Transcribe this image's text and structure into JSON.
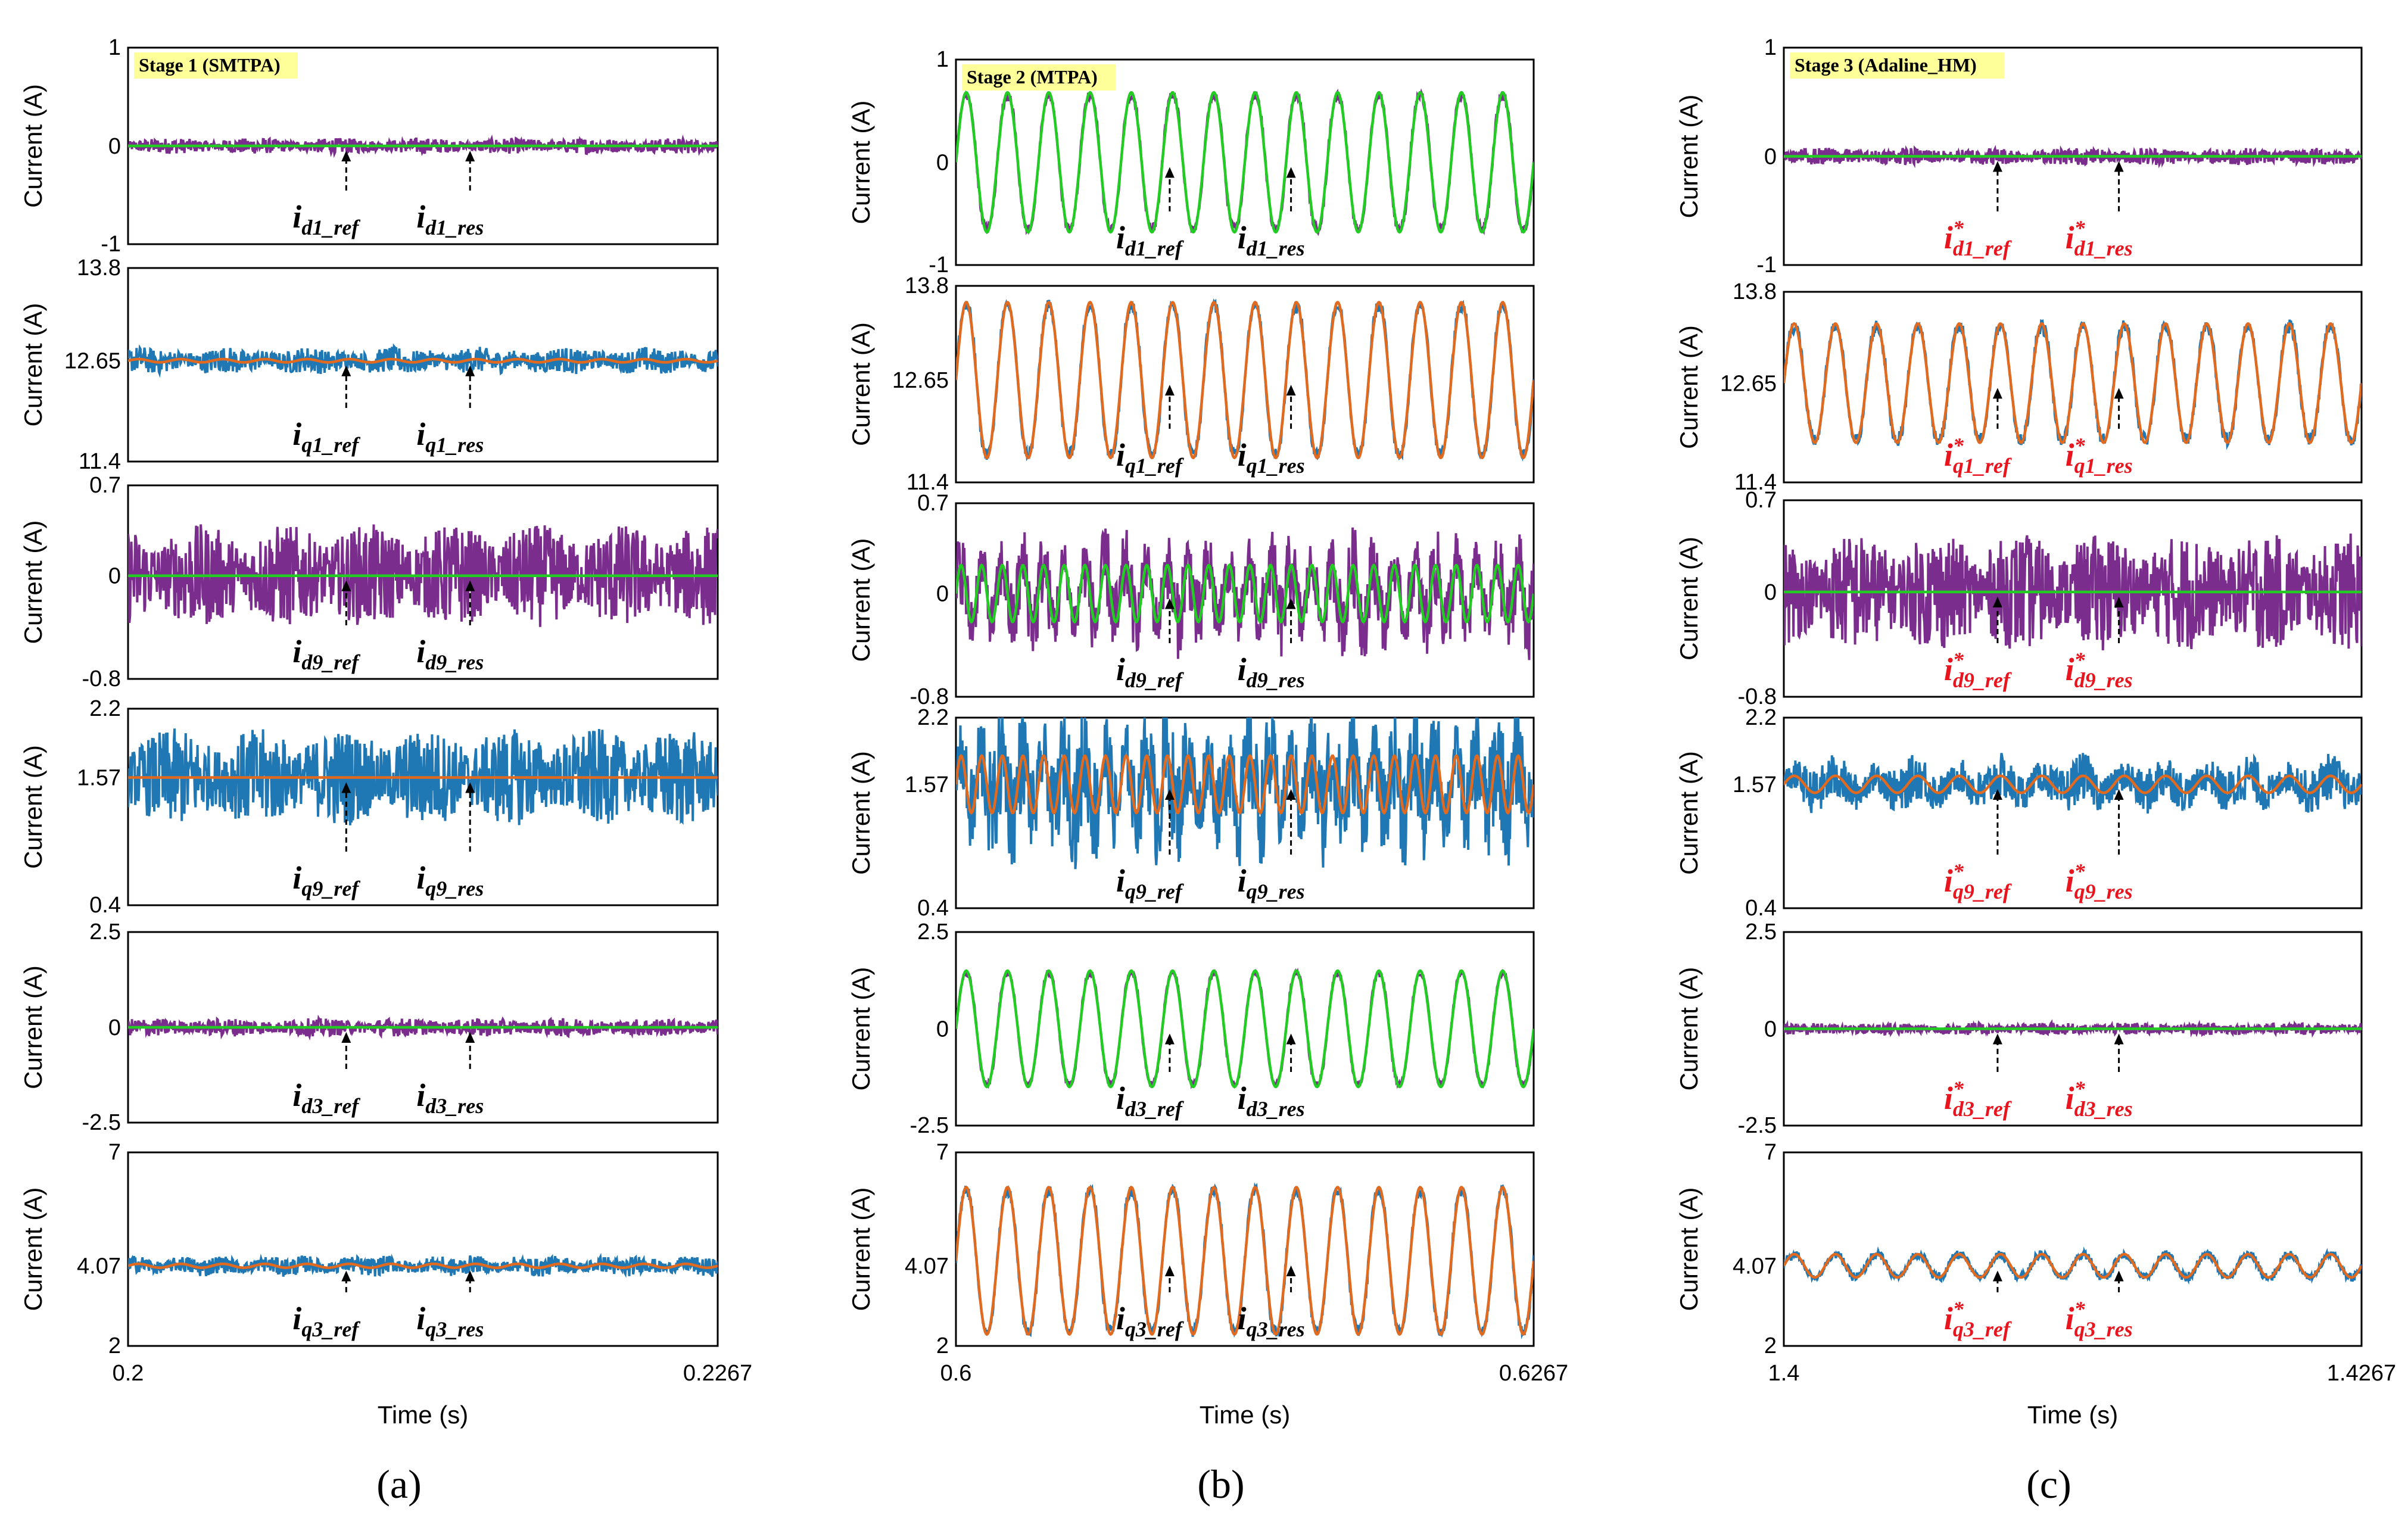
{
  "figure": {
    "ylabel": "Current (A)",
    "xlabel": "Time (s)",
    "colors": {
      "d_res": "#7B2D8E",
      "d_ref": "#22CC22",
      "q_res": "#1F77B4",
      "q_ref": "#E06A1F",
      "stage_box": "#FFFF99",
      "red_label": "#E8141E"
    }
  },
  "chart_data": [
    {
      "column": "a",
      "caption": "(a)",
      "stage_label": "Stage 1 (SMTPA)",
      "type": "line",
      "x_ticks": [
        "0.2",
        "0.2267"
      ],
      "xlim": [
        0.2,
        0.2267
      ],
      "xlabel": "Time (s)",
      "label_style": "plain",
      "subplots": [
        {
          "id": "d1",
          "kind": "d",
          "ylim": [
            -1,
            1
          ],
          "y_ticks": [
            "1",
            "0",
            "-1"
          ],
          "ref_level": 0,
          "ref_amp": 0,
          "res_noise": 0.05,
          "cycles": 14,
          "labels": [
            {
              "base": "i",
              "sub": "d1_ref"
            },
            {
              "base": "i",
              "sub": "d1_res"
            }
          ]
        },
        {
          "id": "q1",
          "kind": "q",
          "ylim": [
            11.4,
            13.8
          ],
          "y_ticks": [
            "13.8",
            "12.65",
            "11.4"
          ],
          "ref_level": 12.65,
          "ref_amp": 0.02,
          "res_noise": 0.1,
          "cycles": 14,
          "labels": [
            {
              "base": "i",
              "sub": "q1_ref"
            },
            {
              "base": "i",
              "sub": "q1_res"
            }
          ]
        },
        {
          "id": "d9",
          "kind": "d",
          "ylim": [
            -0.8,
            0.7
          ],
          "y_ticks": [
            "0.7",
            "0",
            "-0.8"
          ],
          "ref_level": 0,
          "ref_amp": 0,
          "res_noise": 0.25,
          "cycles": 14,
          "labels": [
            {
              "base": "i",
              "sub": "d9_ref"
            },
            {
              "base": "i",
              "sub": "d9_res"
            }
          ]
        },
        {
          "id": "q9",
          "kind": "q",
          "ylim": [
            0.4,
            2.2
          ],
          "y_ticks": [
            "2.2",
            "1.57",
            "0.4"
          ],
          "ref_level": 1.57,
          "ref_amp": 0,
          "res_noise": 0.28,
          "cycles": 14,
          "labels": [
            {
              "base": "i",
              "sub": "q9_ref"
            },
            {
              "base": "i",
              "sub": "q9_res"
            }
          ]
        },
        {
          "id": "d3",
          "kind": "d",
          "ylim": [
            -2.5,
            2.5
          ],
          "y_ticks": [
            "2.5",
            "0",
            "-2.5"
          ],
          "ref_level": 0,
          "ref_amp": 0,
          "res_noise": 0.15,
          "cycles": 14,
          "labels": [
            {
              "base": "i",
              "sub": "d3_ref"
            },
            {
              "base": "i",
              "sub": "d3_res"
            }
          ]
        },
        {
          "id": "q3",
          "kind": "q",
          "ylim": [
            2,
            7
          ],
          "y_ticks": [
            "7",
            "4.07",
            "2"
          ],
          "ref_level": 4.07,
          "ref_amp": 0.05,
          "res_noise": 0.15,
          "cycles": 14,
          "labels": [
            {
              "base": "i",
              "sub": "q3_ref"
            },
            {
              "base": "i",
              "sub": "q3_res"
            }
          ]
        }
      ]
    },
    {
      "column": "b",
      "caption": "(b)",
      "stage_label": "Stage 2 (MTPA)",
      "type": "line",
      "x_ticks": [
        "0.6",
        "0.6267"
      ],
      "xlim": [
        0.6,
        0.6267
      ],
      "xlabel": "Time (s)",
      "label_style": "plain",
      "subplots": [
        {
          "id": "d1",
          "kind": "d",
          "ylim": [
            -1,
            1
          ],
          "y_ticks": [
            "1",
            "0",
            "-1"
          ],
          "ref_level": 0,
          "ref_amp": 0.68,
          "res_noise": 0.03,
          "cycles": 14,
          "labels": [
            {
              "base": "i",
              "sub": "d1_ref"
            },
            {
              "base": "i",
              "sub": "d1_res"
            }
          ]
        },
        {
          "id": "q1",
          "kind": "q",
          "ylim": [
            11.4,
            13.8
          ],
          "y_ticks": [
            "13.8",
            "12.65",
            "11.4"
          ],
          "ref_level": 12.65,
          "ref_amp": 0.95,
          "res_noise": 0.05,
          "cycles": 14,
          "labels": [
            {
              "base": "i",
              "sub": "q1_ref"
            },
            {
              "base": "i",
              "sub": "q1_res"
            }
          ]
        },
        {
          "id": "d9",
          "kind": "d",
          "ylim": [
            -0.8,
            0.7
          ],
          "y_ticks": [
            "0.7",
            "0",
            "-0.8"
          ],
          "ref_level": 0,
          "ref_amp": 0.22,
          "res_noise": 0.2,
          "cycles": 28,
          "labels": [
            {
              "base": "i",
              "sub": "d9_ref"
            },
            {
              "base": "i",
              "sub": "d9_res"
            }
          ]
        },
        {
          "id": "q9",
          "kind": "q",
          "ylim": [
            0.4,
            2.2
          ],
          "y_ticks": [
            "2.2",
            "1.57",
            "0.4"
          ],
          "ref_level": 1.57,
          "ref_amp": 0.27,
          "res_noise": 0.35,
          "cycles": 28,
          "labels": [
            {
              "base": "i",
              "sub": "q9_ref"
            },
            {
              "base": "i",
              "sub": "q9_res"
            }
          ]
        },
        {
          "id": "d3",
          "kind": "d",
          "ylim": [
            -2.5,
            2.5
          ],
          "y_ticks": [
            "2.5",
            "0",
            "-2.5"
          ],
          "ref_level": 0,
          "ref_amp": 1.5,
          "res_noise": 0.05,
          "cycles": 14,
          "labels": [
            {
              "base": "i",
              "sub": "d3_ref"
            },
            {
              "base": "i",
              "sub": "d3_res"
            }
          ]
        },
        {
          "id": "q3",
          "kind": "q",
          "ylim": [
            2,
            7
          ],
          "y_ticks": [
            "7",
            "4.07",
            "2"
          ],
          "ref_level": 4.2,
          "ref_amp": 1.9,
          "res_noise": 0.1,
          "cycles": 14,
          "labels": [
            {
              "base": "i",
              "sub": "q3_ref"
            },
            {
              "base": "i",
              "sub": "q3_res"
            }
          ]
        }
      ]
    },
    {
      "column": "c",
      "caption": "(c)",
      "stage_label": "Stage 3 (Adaline_HM)",
      "type": "line",
      "x_ticks": [
        "1.4",
        "1.4267"
      ],
      "xlim": [
        1.4,
        1.4267
      ],
      "xlabel": "Time (s)",
      "label_style": "starred-red",
      "subplots": [
        {
          "id": "d1",
          "kind": "d",
          "ylim": [
            -1,
            1
          ],
          "y_ticks": [
            "1",
            "0",
            "-1"
          ],
          "ref_level": 0,
          "ref_amp": 0,
          "res_noise": 0.05,
          "cycles": 14,
          "labels": [
            {
              "base": "i",
              "sub": "d1_ref"
            },
            {
              "base": "i",
              "sub": "d1_res"
            }
          ]
        },
        {
          "id": "q1",
          "kind": "q",
          "ylim": [
            11.4,
            13.8
          ],
          "y_ticks": [
            "13.8",
            "12.65",
            "11.4"
          ],
          "ref_level": 12.65,
          "ref_amp": 0.75,
          "res_noise": 0.06,
          "cycles": 14,
          "labels": [
            {
              "base": "i",
              "sub": "q1_ref"
            },
            {
              "base": "i",
              "sub": "q1_res"
            }
          ]
        },
        {
          "id": "d9",
          "kind": "d",
          "ylim": [
            -0.8,
            0.7
          ],
          "y_ticks": [
            "0.7",
            "0",
            "-0.8"
          ],
          "ref_level": 0,
          "ref_amp": 0,
          "res_noise": 0.28,
          "cycles": 14,
          "labels": [
            {
              "base": "i",
              "sub": "d9_ref"
            },
            {
              "base": "i",
              "sub": "d9_res"
            }
          ]
        },
        {
          "id": "q9",
          "kind": "q",
          "ylim": [
            0.4,
            2.2
          ],
          "y_ticks": [
            "2.2",
            "1.57",
            "0.4"
          ],
          "ref_level": 1.57,
          "ref_amp": 0.08,
          "res_noise": 0.14,
          "cycles": 14,
          "labels": [
            {
              "base": "i",
              "sub": "q9_ref"
            },
            {
              "base": "i",
              "sub": "q9_res"
            }
          ]
        },
        {
          "id": "d3",
          "kind": "d",
          "ylim": [
            -2.5,
            2.5
          ],
          "y_ticks": [
            "2.5",
            "0",
            "-2.5"
          ],
          "ref_level": 0,
          "ref_amp": 0,
          "res_noise": 0.1,
          "cycles": 14,
          "labels": [
            {
              "base": "i",
              "sub": "d3_ref"
            },
            {
              "base": "i",
              "sub": "d3_res"
            }
          ]
        },
        {
          "id": "q3",
          "kind": "q",
          "ylim": [
            2,
            7
          ],
          "y_ticks": [
            "7",
            "4.07",
            "2"
          ],
          "ref_level": 4.07,
          "ref_amp": 0.3,
          "res_noise": 0.08,
          "cycles": 14,
          "labels": [
            {
              "base": "i",
              "sub": "q3_ref"
            },
            {
              "base": "i",
              "sub": "q3_res"
            }
          ]
        }
      ]
    }
  ]
}
